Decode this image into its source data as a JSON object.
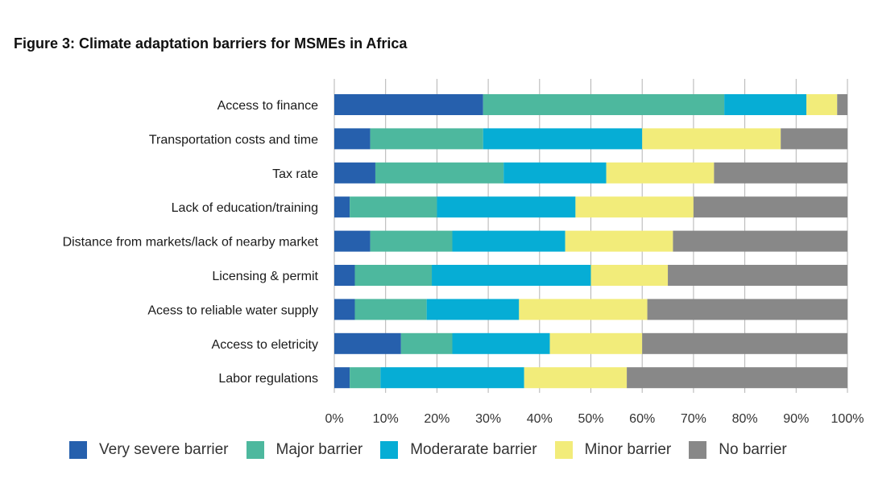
{
  "figure_title": "Figure 3: Climate adaptation barriers for MSMEs in Africa",
  "chart_data": {
    "type": "bar",
    "orientation": "horizontal",
    "stacked": true,
    "categories": [
      "Access to finance",
      "Transportation costs and time",
      "Tax rate",
      "Lack of education/training",
      "Distance from markets/lack of nearby market",
      "Licensing & permit",
      "Acess to reliable water supply",
      "Access to eletricity",
      "Labor regulations"
    ],
    "series": [
      {
        "name": "Very severe barrier",
        "color": "#2660ad",
        "values": [
          29,
          7,
          8,
          3,
          7,
          4,
          4,
          13,
          3
        ]
      },
      {
        "name": "Major barrier",
        "color": "#4db89e",
        "values": [
          47,
          22,
          25,
          17,
          16,
          15,
          14,
          10,
          6
        ]
      },
      {
        "name": "Moderarate barrier",
        "color": "#06add5",
        "values": [
          16,
          31,
          20,
          27,
          22,
          31,
          18,
          19,
          28
        ]
      },
      {
        "name": "Minor barrier",
        "color": "#f2ec7a",
        "values": [
          6,
          27,
          21,
          23,
          21,
          15,
          25,
          18,
          20
        ]
      },
      {
        "name": "No barrier",
        "color": "#888888",
        "values": [
          2,
          13,
          26,
          30,
          34,
          35,
          39,
          40,
          43
        ]
      }
    ],
    "xlim": [
      0,
      100
    ],
    "xticks": [
      "0%",
      "10%",
      "20%",
      "30%",
      "40%",
      "50%",
      "60%",
      "70%",
      "80%",
      "90%",
      "100%"
    ],
    "grid": true,
    "legend": "bottom"
  }
}
